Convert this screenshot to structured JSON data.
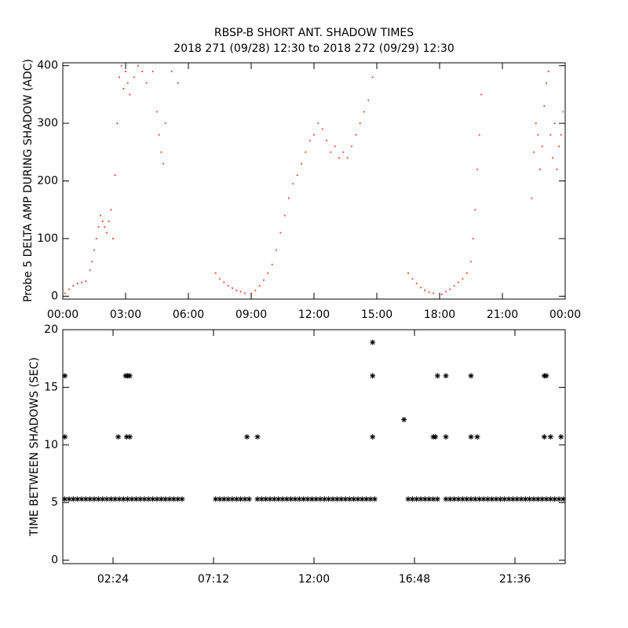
{
  "chart_data": [
    {
      "type": "scatter",
      "title": "RBSP-B SHORT ANT. SHADOW TIMES",
      "subtitle": "2018 271 (09/28) 12:30 to 2018 272 (09/29) 12:30",
      "ylabel": "Probe 5 DELTA AMP DURING SHADOW (ADC)",
      "marker": "dot",
      "color": "#e8391e",
      "xlim": [
        0,
        24
      ],
      "ylim": [
        -5,
        405
      ],
      "xticks": [
        {
          "value": 0,
          "label": "00:00"
        },
        {
          "value": 3,
          "label": "03:00"
        },
        {
          "value": 6,
          "label": "06:00"
        },
        {
          "value": 9,
          "label": "09:00"
        },
        {
          "value": 12,
          "label": "12:00"
        },
        {
          "value": 15,
          "label": "15:00"
        },
        {
          "value": 18,
          "label": "18:00"
        },
        {
          "value": 21,
          "label": "21:00"
        },
        {
          "value": 24,
          "label": "00:00"
        }
      ],
      "yticks": [
        0,
        100,
        200,
        300,
        400
      ],
      "x": [
        0.1,
        0.3,
        0.5,
        0.7,
        0.9,
        1.1,
        1.3,
        1.4,
        1.5,
        1.6,
        1.7,
        1.8,
        1.9,
        2.0,
        2.1,
        2.2,
        2.3,
        2.4,
        2.5,
        2.6,
        2.7,
        2.8,
        2.9,
        3.0,
        3.1,
        3.2,
        3.4,
        3.6,
        3.8,
        4.0,
        4.3,
        4.5,
        4.6,
        4.7,
        4.8,
        4.9,
        5.2,
        5.5,
        7.3,
        7.5,
        7.7,
        7.9,
        8.1,
        8.3,
        8.5,
        8.7,
        9.0,
        9.2,
        9.4,
        9.6,
        9.8,
        10.0,
        10.2,
        10.4,
        10.6,
        10.8,
        11.0,
        11.2,
        11.4,
        11.6,
        11.8,
        12.0,
        12.2,
        12.4,
        12.6,
        12.8,
        13.0,
        13.2,
        13.4,
        13.6,
        13.8,
        14.0,
        14.2,
        14.4,
        14.6,
        14.8,
        16.5,
        16.7,
        16.9,
        17.1,
        17.3,
        17.5,
        17.7,
        18.1,
        18.3,
        18.5,
        18.7,
        18.9,
        19.1,
        19.3,
        19.5,
        19.6,
        19.7,
        19.8,
        19.9,
        20.0,
        22.4,
        22.5,
        22.6,
        22.7,
        22.8,
        22.9,
        23.0,
        23.1,
        23.2,
        23.3,
        23.4,
        23.5,
        23.6,
        23.7,
        23.8,
        23.9
      ],
      "values": [
        5,
        12,
        18,
        22,
        24,
        26,
        45,
        60,
        80,
        100,
        120,
        140,
        130,
        120,
        110,
        130,
        150,
        100,
        210,
        300,
        380,
        400,
        360,
        390,
        370,
        350,
        380,
        400,
        390,
        370,
        390,
        320,
        280,
        250,
        230,
        300,
        390,
        370,
        40,
        30,
        24,
        18,
        14,
        10,
        8,
        5,
        5,
        10,
        18,
        28,
        40,
        55,
        80,
        110,
        140,
        170,
        195,
        210,
        230,
        250,
        270,
        280,
        300,
        290,
        270,
        250,
        260,
        240,
        250,
        240,
        260,
        280,
        300,
        320,
        340,
        380,
        40,
        30,
        22,
        15,
        10,
        7,
        5,
        3,
        8,
        12,
        18,
        24,
        30,
        40,
        60,
        100,
        150,
        220,
        280,
        350,
        170,
        250,
        300,
        280,
        220,
        260,
        330,
        370,
        390,
        280,
        240,
        300,
        220,
        260,
        280,
        320
      ]
    },
    {
      "type": "scatter",
      "ylabel": "TIME BETWEEN SHADOWS (SEC)",
      "marker": "asterisk",
      "color": "#000000",
      "xlim": [
        0,
        24
      ],
      "ylim": [
        -0.3,
        20
      ],
      "xticks": [
        {
          "value": 2.4,
          "label": "02:24"
        },
        {
          "value": 7.2,
          "label": "07:12"
        },
        {
          "value": 12,
          "label": "12:00"
        },
        {
          "value": 16.8,
          "label": "16:48"
        },
        {
          "value": 21.6,
          "label": "21:36"
        }
      ],
      "yticks": [
        0,
        5,
        10,
        15,
        20
      ],
      "x": [
        0.1,
        0.3,
        0.5,
        0.7,
        0.9,
        1.1,
        1.3,
        1.5,
        1.7,
        1.9,
        2.1,
        2.3,
        2.5,
        2.7,
        2.9,
        3.1,
        3.3,
        3.5,
        3.7,
        3.9,
        4.1,
        4.3,
        4.5,
        4.7,
        4.9,
        5.1,
        5.3,
        5.5,
        5.7,
        7.3,
        7.5,
        7.7,
        7.9,
        8.1,
        8.3,
        8.5,
        8.7,
        8.9,
        9.3,
        9.5,
        9.7,
        9.9,
        10.1,
        10.3,
        10.5,
        10.7,
        10.9,
        11.1,
        11.3,
        11.5,
        11.7,
        11.9,
        12.1,
        12.3,
        12.5,
        12.7,
        12.9,
        13.1,
        13.3,
        13.5,
        13.7,
        13.9,
        14.1,
        14.3,
        14.5,
        14.7,
        14.9,
        16.5,
        16.7,
        16.9,
        17.1,
        17.3,
        17.5,
        17.7,
        17.9,
        18.3,
        18.5,
        18.7,
        18.9,
        19.1,
        19.3,
        19.5,
        19.7,
        19.9,
        20.1,
        20.3,
        20.5,
        20.7,
        20.9,
        21.1,
        21.3,
        21.5,
        21.7,
        21.9,
        22.1,
        22.3,
        22.5,
        22.7,
        22.9,
        23.1,
        23.3,
        23.5,
        23.7,
        23.9,
        0.1,
        0.1,
        2.65,
        3.0,
        3.1,
        3.2,
        3.05,
        3.2,
        8.8,
        9.3,
        14.8,
        14.8,
        14.8,
        16.3,
        17.7,
        17.8,
        17.9,
        18.3,
        18.3,
        19.5,
        19.5,
        19.8,
        23.0,
        23.1,
        23.0,
        23.3,
        23.8
      ],
      "values": [
        5.3,
        5.3,
        5.3,
        5.3,
        5.3,
        5.3,
        5.3,
        5.3,
        5.3,
        5.3,
        5.3,
        5.3,
        5.3,
        5.3,
        5.3,
        5.3,
        5.3,
        5.3,
        5.3,
        5.3,
        5.3,
        5.3,
        5.3,
        5.3,
        5.3,
        5.3,
        5.3,
        5.3,
        5.3,
        5.3,
        5.3,
        5.3,
        5.3,
        5.3,
        5.3,
        5.3,
        5.3,
        5.3,
        5.3,
        5.3,
        5.3,
        5.3,
        5.3,
        5.3,
        5.3,
        5.3,
        5.3,
        5.3,
        5.3,
        5.3,
        5.3,
        5.3,
        5.3,
        5.3,
        5.3,
        5.3,
        5.3,
        5.3,
        5.3,
        5.3,
        5.3,
        5.3,
        5.3,
        5.3,
        5.3,
        5.3,
        5.3,
        5.3,
        5.3,
        5.3,
        5.3,
        5.3,
        5.3,
        5.3,
        5.3,
        5.3,
        5.3,
        5.3,
        5.3,
        5.3,
        5.3,
        5.3,
        5.3,
        5.3,
        5.3,
        5.3,
        5.3,
        5.3,
        5.3,
        5.3,
        5.3,
        5.3,
        5.3,
        5.3,
        5.3,
        5.3,
        5.3,
        5.3,
        5.3,
        5.3,
        5.3,
        5.3,
        5.3,
        5.3,
        16,
        10.7,
        10.7,
        16,
        16,
        16,
        10.7,
        10.7,
        10.7,
        10.7,
        18.9,
        16,
        10.7,
        12.2,
        10.7,
        10.7,
        16,
        16,
        10.7,
        16,
        10.7,
        10.7,
        16,
        16,
        10.7,
        10.7,
        10.7
      ]
    }
  ]
}
